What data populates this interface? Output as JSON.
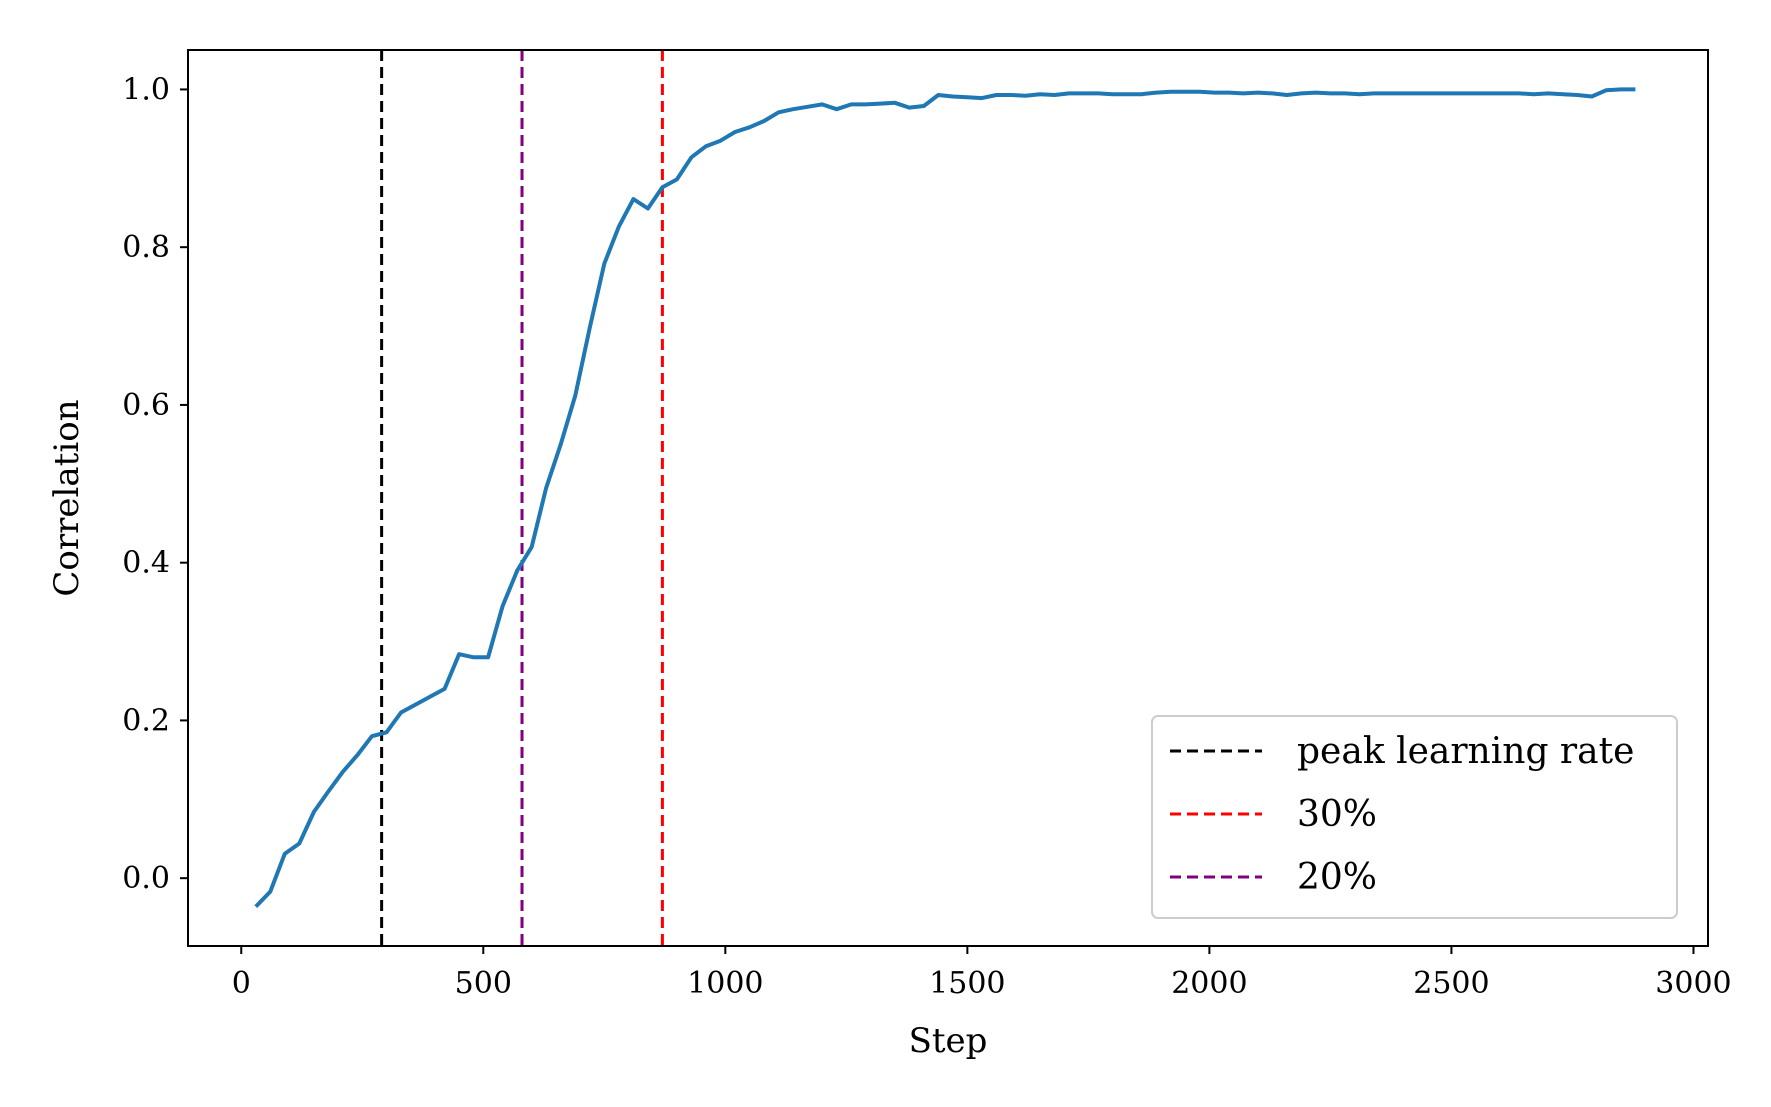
{
  "chart_data": {
    "type": "line",
    "title": "",
    "xlabel": "Step",
    "ylabel": "Correlation",
    "xlim": [
      -110,
      3030
    ],
    "ylim": [
      -0.086,
      1.05
    ],
    "xticks": [
      0,
      500,
      1000,
      1500,
      2000,
      2500,
      3000
    ],
    "xtick_labels": [
      "0",
      "500",
      "1000",
      "1500",
      "2000",
      "2500",
      "3000"
    ],
    "yticks": [
      0.0,
      0.2,
      0.4,
      0.6,
      0.8,
      1.0
    ],
    "ytick_labels": [
      "0.0",
      "0.2",
      "0.4",
      "0.6",
      "0.8",
      "1.0"
    ],
    "grid": false,
    "legend_position": "bottom-right",
    "series": [
      {
        "name": "",
        "color": "#1f77b4",
        "x": [
          30,
          60,
          90,
          120,
          150,
          180,
          210,
          240,
          270,
          300,
          330,
          360,
          390,
          420,
          450,
          480,
          510,
          540,
          570,
          600,
          630,
          660,
          690,
          720,
          750,
          780,
          810,
          840,
          870,
          900,
          930,
          960,
          990,
          1020,
          1050,
          1080,
          1110,
          1140,
          1170,
          1200,
          1230,
          1260,
          1290,
          1320,
          1350,
          1380,
          1410,
          1440,
          1470,
          1500,
          1530,
          1560,
          1590,
          1620,
          1650,
          1680,
          1710,
          1740,
          1770,
          1800,
          1830,
          1860,
          1890,
          1920,
          1950,
          1980,
          2010,
          2040,
          2070,
          2100,
          2130,
          2160,
          2190,
          2220,
          2250,
          2280,
          2310,
          2340,
          2370,
          2400,
          2430,
          2460,
          2490,
          2520,
          2550,
          2580,
          2610,
          2640,
          2670,
          2700,
          2730,
          2760,
          2790,
          2820,
          2850,
          2880
        ],
        "y": [
          -0.036,
          -0.017,
          0.031,
          0.044,
          0.084,
          0.11,
          0.135,
          0.156,
          0.18,
          0.185,
          0.21,
          0.22,
          0.23,
          0.24,
          0.284,
          0.28,
          0.28,
          0.345,
          0.39,
          0.42,
          0.495,
          0.55,
          0.612,
          0.698,
          0.779,
          0.826,
          0.861,
          0.849,
          0.876,
          0.886,
          0.914,
          0.928,
          0.935,
          0.946,
          0.952,
          0.96,
          0.971,
          0.975,
          0.978,
          0.981,
          0.975,
          0.981,
          0.981,
          0.982,
          0.983,
          0.977,
          0.979,
          0.993,
          0.991,
          0.99,
          0.989,
          0.993,
          0.993,
          0.992,
          0.994,
          0.993,
          0.995,
          0.995,
          0.995,
          0.994,
          0.994,
          0.994,
          0.996,
          0.997,
          0.997,
          0.997,
          0.996,
          0.996,
          0.995,
          0.996,
          0.995,
          0.993,
          0.995,
          0.996,
          0.995,
          0.995,
          0.994,
          0.995,
          0.995,
          0.995,
          0.995,
          0.995,
          0.995,
          0.995,
          0.995,
          0.995,
          0.995,
          0.995,
          0.994,
          0.995,
          0.994,
          0.993,
          0.991,
          0.999,
          1.0,
          1.0
        ]
      }
    ],
    "vlines": [
      {
        "name": "peak learning rate",
        "x": 290,
        "color": "#000000"
      },
      {
        "name": "30%",
        "x": 870,
        "color": "#ff0000"
      },
      {
        "name": "20%",
        "x": 580,
        "color": "#800080"
      }
    ],
    "legend": [
      {
        "label": "peak learning rate",
        "color": "#000000"
      },
      {
        "label": "30%",
        "color": "#ff0000"
      },
      {
        "label": "20%",
        "color": "#800080"
      }
    ]
  }
}
